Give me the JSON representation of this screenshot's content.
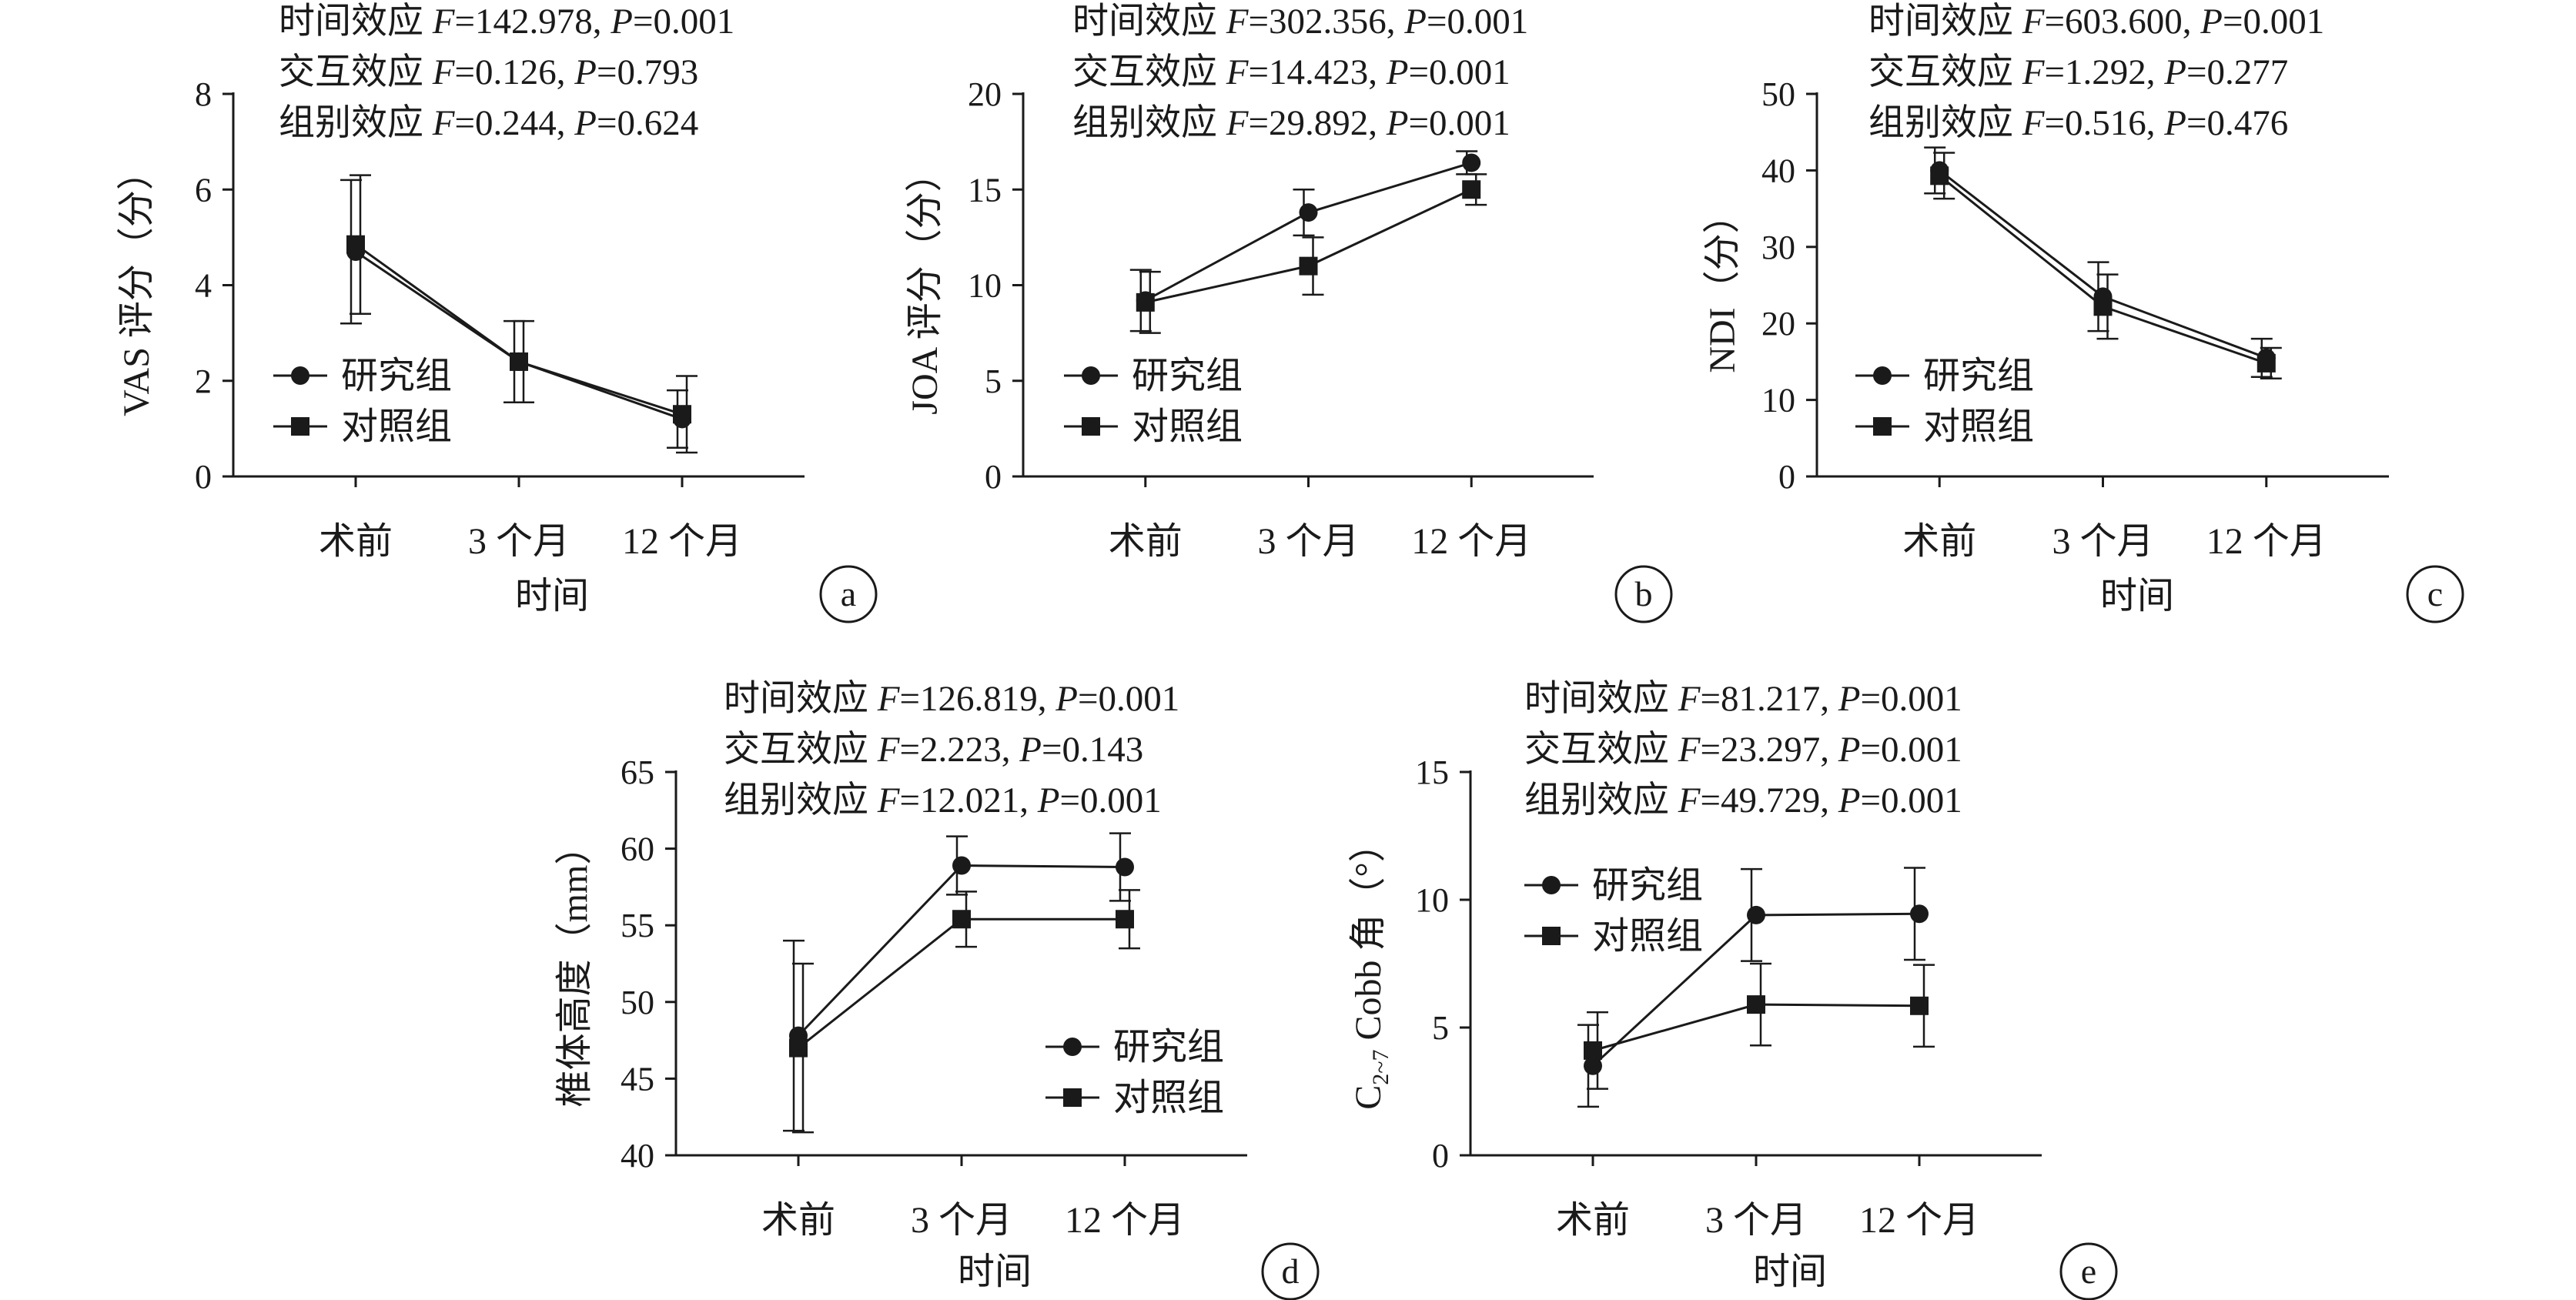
{
  "chart_data": [
    {
      "type": "line",
      "panel_label": "a",
      "stats": [
        "时间效应 F=142.978, P=0.001",
        "交互效应 F=0.126, P=0.793",
        "组别效应 F=0.244, P=0.624"
      ],
      "xlabel": "时间",
      "ylabel": "VAS 评分（分）",
      "categories": [
        "术前",
        "3 个月",
        "12 个月"
      ],
      "ylim": [
        0,
        8
      ],
      "yticks": [
        0,
        2,
        4,
        6,
        8
      ],
      "legend_position": "left",
      "series": [
        {
          "name": "研究组",
          "marker": "circle",
          "values": [
            4.7,
            2.4,
            1.2
          ],
          "errors": [
            1.5,
            0.85,
            0.6
          ]
        },
        {
          "name": "对照组",
          "marker": "square",
          "values": [
            4.85,
            2.4,
            1.3
          ],
          "errors": [
            1.45,
            0.85,
            0.8
          ]
        }
      ]
    },
    {
      "type": "line",
      "panel_label": "b",
      "stats": [
        "时间效应 F=302.356, P=0.001",
        "交互效应 F=14.423, P=0.001",
        "组别效应 F=29.892, P=0.001"
      ],
      "xlabel": "",
      "ylabel": "JOA 评分（分）",
      "categories": [
        "术前",
        "3 个月",
        "12 个月"
      ],
      "ylim": [
        0,
        20
      ],
      "yticks": [
        0,
        5,
        10,
        15,
        20
      ],
      "legend_position": "left",
      "series": [
        {
          "name": "研究组",
          "marker": "circle",
          "values": [
            9.2,
            13.8,
            16.4
          ],
          "errors": [
            1.6,
            1.2,
            0.6
          ]
        },
        {
          "name": "对照组",
          "marker": "square",
          "values": [
            9.1,
            11.0,
            15.0
          ],
          "errors": [
            1.6,
            1.5,
            0.8
          ]
        }
      ]
    },
    {
      "type": "line",
      "panel_label": "c",
      "stats": [
        "时间效应 F=603.600, P=0.001",
        "交互效应 F=1.292, P=0.277",
        "组别效应 F=0.516, P=0.476"
      ],
      "xlabel": "时间",
      "ylabel": "NDI（分）",
      "categories": [
        "术前",
        "3 个月",
        "12 个月"
      ],
      "ylim": [
        0,
        50
      ],
      "yticks": [
        0,
        10,
        20,
        30,
        40,
        50
      ],
      "legend_position": "left",
      "series": [
        {
          "name": "研究组",
          "marker": "circle",
          "values": [
            40.0,
            23.5,
            15.5
          ],
          "errors": [
            3.0,
            4.5,
            2.5
          ]
        },
        {
          "name": "对照组",
          "marker": "square",
          "values": [
            39.3,
            22.2,
            14.8
          ],
          "errors": [
            3.0,
            4.2,
            2.0
          ]
        }
      ]
    },
    {
      "type": "line",
      "panel_label": "d",
      "stats": [
        "时间效应 F=126.819, P=0.001",
        "交互效应 F=2.223, P=0.143",
        "组别效应 F=12.021, P=0.001"
      ],
      "xlabel": "时间",
      "ylabel": "椎体高度（mm）",
      "categories": [
        "术前",
        "3 个月",
        "12 个月"
      ],
      "ylim": [
        40,
        65
      ],
      "yticks": [
        40,
        45,
        50,
        55,
        60,
        65
      ],
      "legend_position": "bottom-right",
      "series": [
        {
          "name": "研究组",
          "marker": "circle",
          "values": [
            47.8,
            58.9,
            58.8
          ],
          "errors": [
            6.2,
            1.9,
            2.2
          ]
        },
        {
          "name": "对照组",
          "marker": "square",
          "values": [
            47.0,
            55.4,
            55.4
          ],
          "errors": [
            5.5,
            1.8,
            1.9
          ]
        }
      ]
    },
    {
      "type": "line",
      "panel_label": "e",
      "stats": [
        "时间效应 F=81.217, P=0.001",
        "交互效应 F=23.297, P=0.001",
        "组别效应 F=49.729, P=0.001"
      ],
      "xlabel": "时间",
      "ylabel": "C2-7 Cobb 角（°）",
      "ylabel_main": "C",
      "ylabel_sub": "2~7",
      "ylabel_rest": " Cobb 角（°）",
      "categories": [
        "术前",
        "3 个月",
        "12 个月"
      ],
      "ylim": [
        0,
        15
      ],
      "yticks": [
        0,
        5,
        10,
        15
      ],
      "legend_position": "top-left",
      "series": [
        {
          "name": "研究组",
          "marker": "circle",
          "values": [
            3.5,
            9.4,
            9.45
          ],
          "errors": [
            1.6,
            1.8,
            1.8
          ]
        },
        {
          "name": "对照组",
          "marker": "square",
          "values": [
            4.1,
            5.9,
            5.85
          ],
          "errors": [
            1.5,
            1.6,
            1.6
          ]
        }
      ]
    }
  ]
}
